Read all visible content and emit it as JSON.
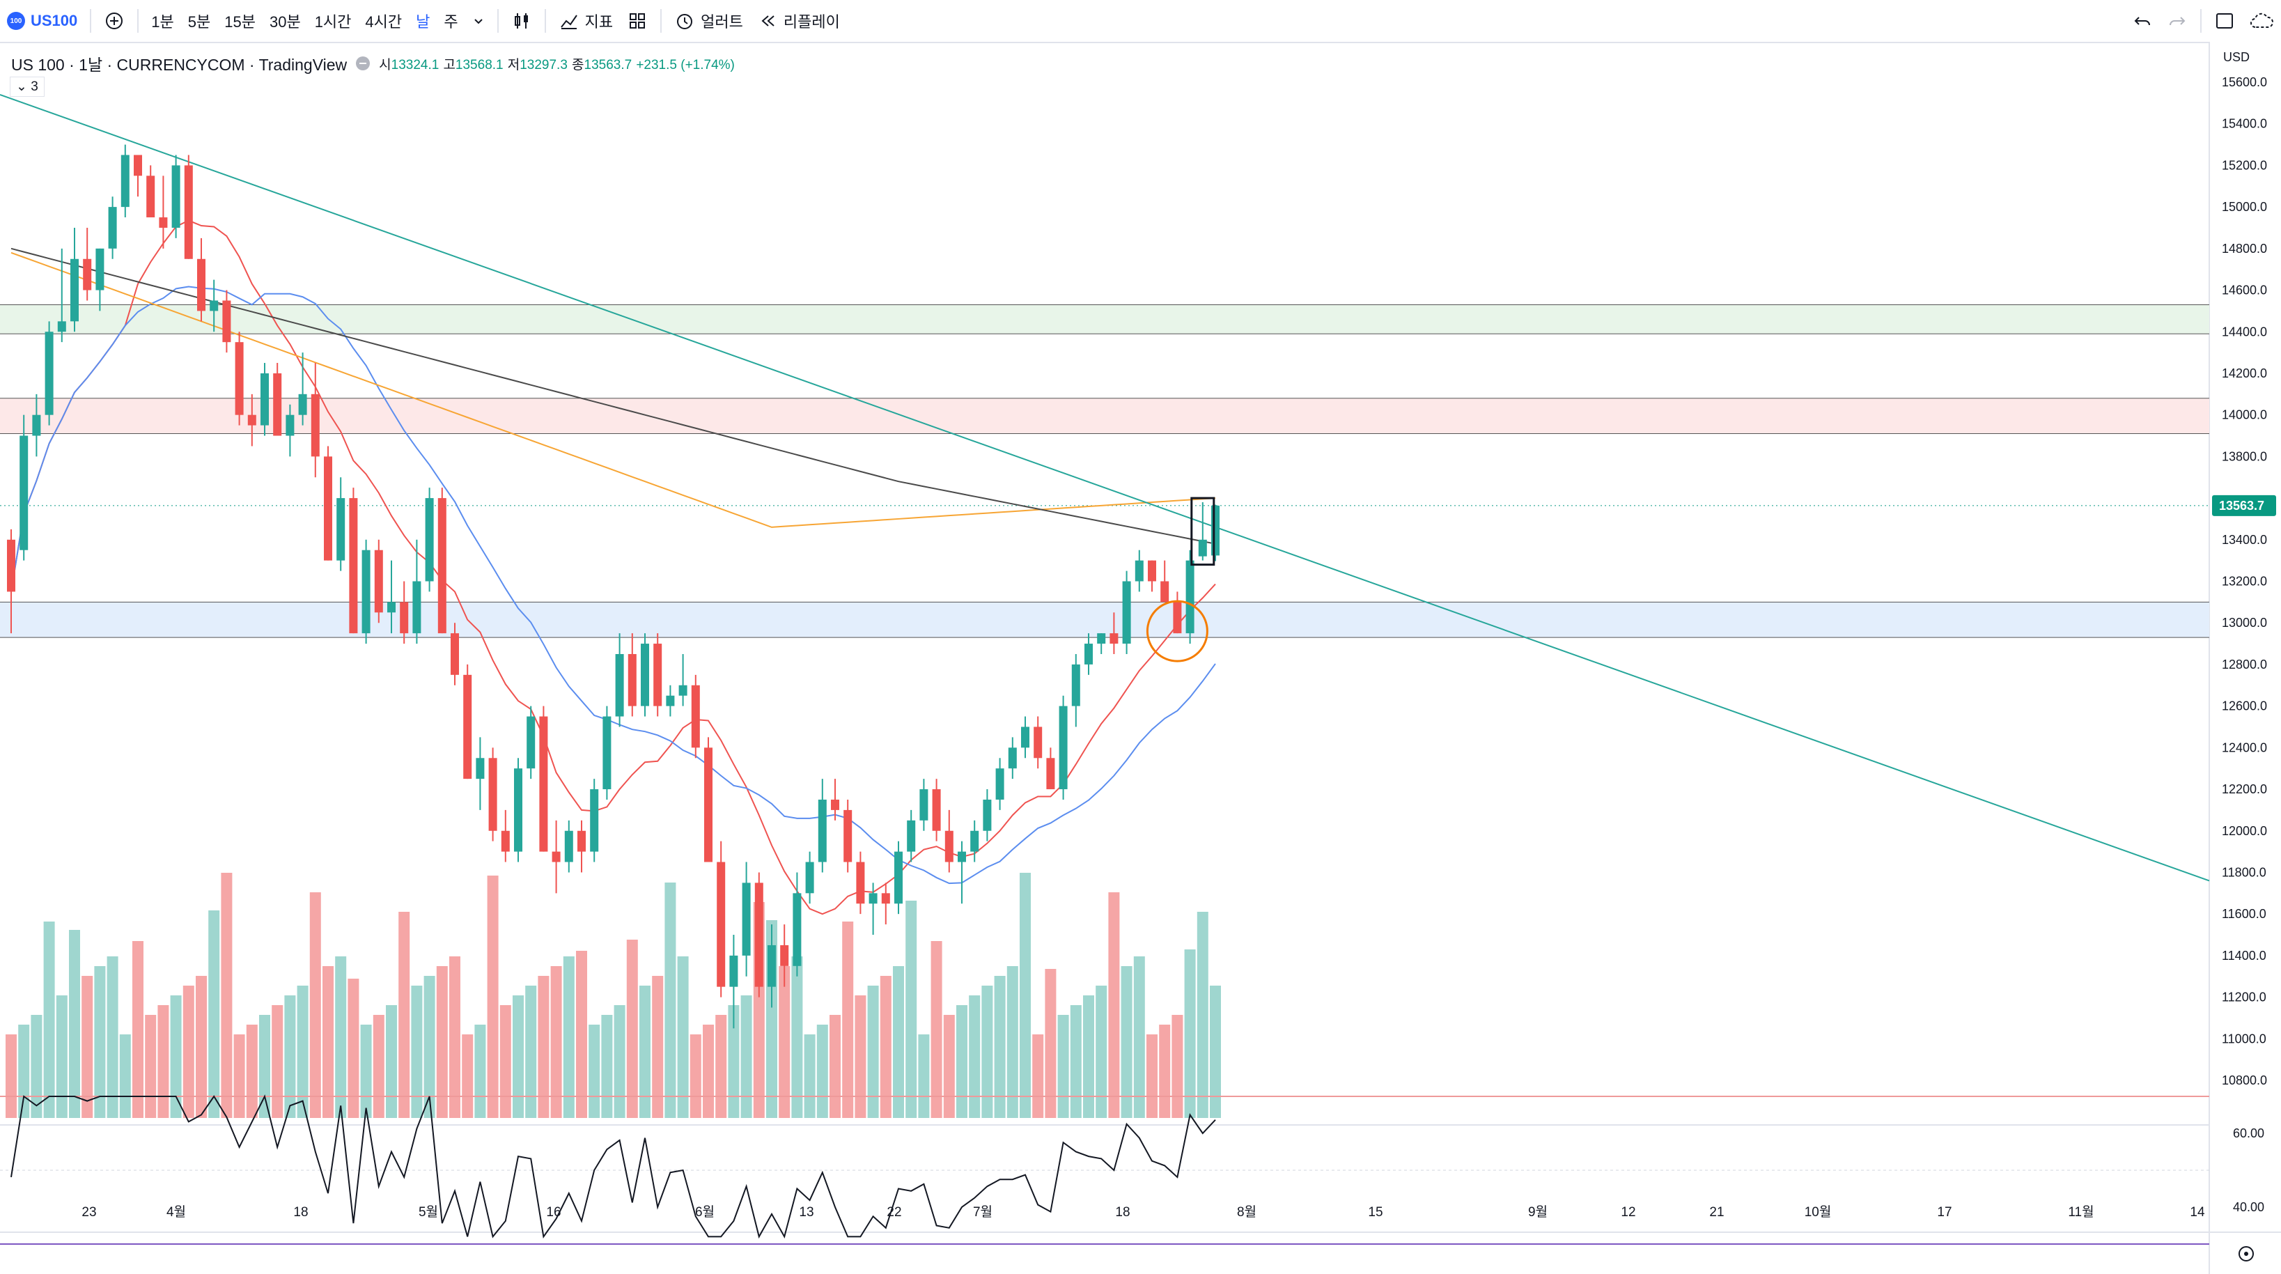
{
  "toolbar": {
    "symbol": "US100",
    "logo_text": "100",
    "intervals": [
      "1분",
      "5분",
      "15분",
      "30분",
      "1시간",
      "4시간",
      "날",
      "주"
    ],
    "active_interval": "날",
    "indicators_label": "지표",
    "alerts_label": "얼러트",
    "replay_label": "리플레이",
    "icons": [
      "plus-icon",
      "chevron-down-icon",
      "candles-icon",
      "indicators-icon",
      "templates-icon",
      "alert-clock-icon",
      "replay-icon",
      "undo-icon",
      "redo-icon",
      "layout-icon",
      "cloud-icon"
    ]
  },
  "legend": {
    "title": "US 100 · 1날 · CURRENCYCOM · TradingView",
    "open_label": "시",
    "open": "13324.1",
    "high_label": "고",
    "high": "13568.1",
    "low_label": "저",
    "low": "13297.3",
    "close_label": "종",
    "close": "13563.7",
    "change": "+231.5 (+1.74%)",
    "collapsed_count": "3"
  },
  "price_axis": {
    "currency": "USD",
    "ticks": [
      "15600.0",
      "15400.0",
      "15200.0",
      "15000.0",
      "14800.0",
      "14600.0",
      "14400.0",
      "14200.0",
      "14000.0",
      "13800.0",
      "13400.0",
      "13200.0",
      "13000.0",
      "12800.0",
      "12600.0",
      "12400.0",
      "12200.0",
      "12000.0",
      "11800.0",
      "11600.0",
      "11400.0",
      "11200.0",
      "11000.0",
      "10800.0"
    ],
    "current_price": "13563.7",
    "current_color": "#089981"
  },
  "oscillator_axis": {
    "ticks": [
      "60.00",
      "40.00"
    ]
  },
  "time_axis": {
    "ticks": [
      "23",
      "4월",
      "18",
      "5월",
      "16",
      "6월",
      "13",
      "22",
      "7월",
      "18",
      "8월",
      "15",
      "9월",
      "12",
      "21",
      "10월",
      "17",
      "11월",
      "14"
    ]
  },
  "colors": {
    "up": "#26a69a",
    "down": "#ef5350",
    "ma_red": "#ef5350",
    "ma_blue": "#5b8def",
    "ma_orange": "#f7a534",
    "ma_black": "#4a4a4a",
    "trendline": "#26a69a",
    "zone_green": "#e8f5e9",
    "zone_red": "#fde8e8",
    "zone_blue": "#e3eefc"
  },
  "chart_data": {
    "type": "candlestick",
    "ylim": [
      10700,
      15700
    ],
    "candles": [
      [
        13400,
        13450,
        12950,
        13150
      ],
      [
        13350,
        14000,
        13300,
        13900
      ],
      [
        13900,
        14100,
        13800,
        14000
      ],
      [
        14000,
        14450,
        13950,
        14400
      ],
      [
        14400,
        14800,
        14350,
        14450
      ],
      [
        14450,
        14900,
        14400,
        14750
      ],
      [
        14750,
        14900,
        14550,
        14600
      ],
      [
        14600,
        14800,
        14500,
        14800
      ],
      [
        14800,
        15050,
        14750,
        15000
      ],
      [
        15000,
        15300,
        14950,
        15250
      ],
      [
        15250,
        15250,
        15050,
        15150
      ],
      [
        15150,
        15200,
        14950,
        14950
      ],
      [
        14950,
        15150,
        14800,
        14900
      ],
      [
        14900,
        15250,
        14850,
        15200
      ],
      [
        15200,
        15250,
        14750,
        14750
      ],
      [
        14750,
        14850,
        14450,
        14500
      ],
      [
        14500,
        14650,
        14400,
        14550
      ],
      [
        14550,
        14600,
        14300,
        14350
      ],
      [
        14350,
        14400,
        13950,
        14000
      ],
      [
        14000,
        14100,
        13850,
        13950
      ],
      [
        13950,
        14250,
        13900,
        14200
      ],
      [
        14200,
        14250,
        13900,
        13900
      ],
      [
        13900,
        14050,
        13800,
        14000
      ],
      [
        14000,
        14300,
        13950,
        14100
      ],
      [
        14100,
        14250,
        13700,
        13800
      ],
      [
        13800,
        13850,
        13300,
        13300
      ],
      [
        13300,
        13700,
        13250,
        13600
      ],
      [
        13600,
        13650,
        12950,
        12950
      ],
      [
        12950,
        13400,
        12900,
        13350
      ],
      [
        13350,
        13400,
        13000,
        13050
      ],
      [
        13050,
        13300,
        12950,
        13100
      ],
      [
        13100,
        13200,
        12900,
        12950
      ],
      [
        12950,
        13400,
        12900,
        13200
      ],
      [
        13200,
        13650,
        13150,
        13600
      ],
      [
        13600,
        13650,
        12950,
        12950
      ],
      [
        12950,
        13000,
        12700,
        12750
      ],
      [
        12750,
        12800,
        12250,
        12250
      ],
      [
        12250,
        12450,
        12100,
        12350
      ],
      [
        12350,
        12400,
        11950,
        12000
      ],
      [
        12000,
        12100,
        11850,
        11900
      ],
      [
        11900,
        12350,
        11850,
        12300
      ],
      [
        12300,
        12600,
        12250,
        12550
      ],
      [
        12550,
        12600,
        11900,
        11900
      ],
      [
        11900,
        12050,
        11700,
        11850
      ],
      [
        11850,
        12050,
        11800,
        12000
      ],
      [
        12000,
        12050,
        11800,
        11900
      ],
      [
        11900,
        12250,
        11850,
        12200
      ],
      [
        12200,
        12600,
        12150,
        12550
      ],
      [
        12550,
        12950,
        12500,
        12850
      ],
      [
        12850,
        12950,
        12550,
        12600
      ],
      [
        12600,
        12950,
        12550,
        12900
      ],
      [
        12900,
        12950,
        12550,
        12600
      ],
      [
        12600,
        12700,
        12550,
        12650
      ],
      [
        12650,
        12850,
        12600,
        12700
      ],
      [
        12700,
        12750,
        12350,
        12400
      ],
      [
        12400,
        12450,
        11850,
        11850
      ],
      [
        11850,
        11950,
        11200,
        11250
      ],
      [
        11250,
        11500,
        11050,
        11400
      ],
      [
        11400,
        11850,
        11300,
        11750
      ],
      [
        11750,
        11800,
        11200,
        11250
      ],
      [
        11250,
        11550,
        11150,
        11450
      ],
      [
        11450,
        11550,
        11250,
        11350
      ],
      [
        11350,
        11800,
        11300,
        11700
      ],
      [
        11700,
        11900,
        11650,
        11850
      ],
      [
        11850,
        12250,
        11800,
        12150
      ],
      [
        12150,
        12250,
        12050,
        12100
      ],
      [
        12100,
        12150,
        11800,
        11850
      ],
      [
        11850,
        11900,
        11600,
        11650
      ],
      [
        11650,
        11750,
        11500,
        11700
      ],
      [
        11700,
        11750,
        11550,
        11650
      ],
      [
        11650,
        11950,
        11600,
        11900
      ],
      [
        11900,
        12100,
        11850,
        12050
      ],
      [
        12050,
        12250,
        12000,
        12200
      ],
      [
        12200,
        12250,
        11950,
        12000
      ],
      [
        12000,
        12100,
        11800,
        11850
      ],
      [
        11850,
        11950,
        11650,
        11900
      ],
      [
        11900,
        12050,
        11850,
        12000
      ],
      [
        12000,
        12200,
        11950,
        12150
      ],
      [
        12150,
        12350,
        12100,
        12300
      ],
      [
        12300,
        12450,
        12250,
        12400
      ],
      [
        12400,
        12550,
        12350,
        12500
      ],
      [
        12500,
        12550,
        12300,
        12350
      ],
      [
        12350,
        12400,
        12200,
        12200
      ],
      [
        12200,
        12650,
        12150,
        12600
      ],
      [
        12600,
        12850,
        12500,
        12800
      ],
      [
        12800,
        12950,
        12750,
        12900
      ],
      [
        12900,
        12950,
        12850,
        12950
      ],
      [
        12950,
        13050,
        12850,
        12900
      ],
      [
        12900,
        13250,
        12850,
        13200
      ],
      [
        13200,
        13350,
        13150,
        13300
      ],
      [
        13300,
        13300,
        13150,
        13200
      ],
      [
        13200,
        13300,
        13100,
        13100
      ],
      [
        13100,
        13150,
        12950,
        12950
      ],
      [
        12950,
        13350,
        12900,
        13300
      ],
      [
        13320,
        13580,
        13300,
        13400
      ],
      [
        13324,
        13568,
        13297,
        13564
      ]
    ]
  }
}
